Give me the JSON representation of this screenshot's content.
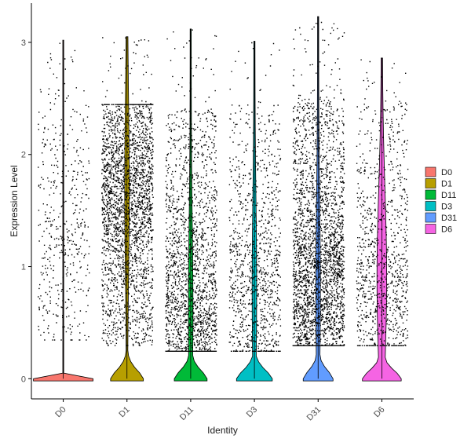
{
  "chart_data": {
    "type": "violin",
    "xlabel": "Identity",
    "ylabel": "Expression Level",
    "ylim": [
      -0.18,
      3.35
    ],
    "yticks": [
      0,
      1,
      2,
      3
    ],
    "ytick_labels": [
      "0",
      "1",
      "2",
      "3"
    ],
    "grid": false,
    "legend_position": "right",
    "categories": [
      "D0",
      "D1",
      "D11",
      "D3",
      "D31",
      "D6"
    ],
    "series": [
      {
        "name": "D0",
        "color": "#F8766D",
        "max": 3.02,
        "zero_fraction": 0.88,
        "point_count": 480,
        "expr_range": [
          0.35,
          2.6
        ],
        "expr_mode": 1.3
      },
      {
        "name": "D1",
        "color": "#B79F00",
        "max": 3.05,
        "zero_fraction": 0.3,
        "point_count": 2600,
        "expr_range": [
          0.3,
          2.45
        ],
        "expr_mode": 1.7
      },
      {
        "name": "D11",
        "color": "#00BA38",
        "max": 3.12,
        "zero_fraction": 0.3,
        "point_count": 2000,
        "expr_range": [
          0.25,
          2.4
        ],
        "expr_mode": 0.6
      },
      {
        "name": "D3",
        "color": "#00BFC4",
        "max": 3.01,
        "zero_fraction": 0.35,
        "point_count": 1100,
        "expr_range": [
          0.25,
          2.45
        ],
        "expr_mode": 0.8
      },
      {
        "name": "D31",
        "color": "#619CFF",
        "max": 3.23,
        "zero_fraction": 0.25,
        "point_count": 2900,
        "expr_range": [
          0.3,
          2.5
        ],
        "expr_mode": 0.8
      },
      {
        "name": "D6",
        "color": "#F564E3",
        "max": 2.86,
        "zero_fraction": 0.4,
        "point_count": 1000,
        "expr_range": [
          0.3,
          2.45
        ],
        "expr_mode": 0.9
      }
    ]
  }
}
